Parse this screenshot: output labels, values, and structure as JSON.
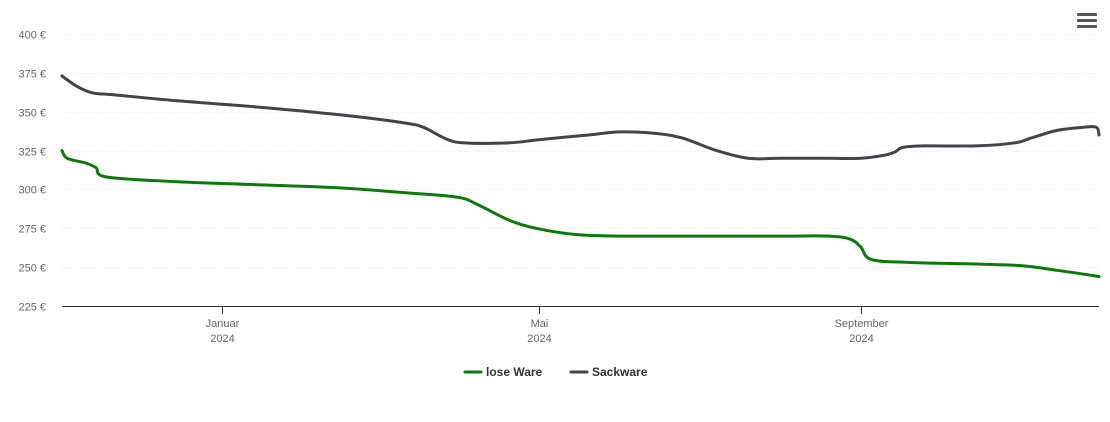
{
  "menu": {
    "icon": "hamburger-menu-icon"
  },
  "chart_data": {
    "type": "line",
    "y_tick_labels": [
      "225 €",
      "250 €",
      "275 €",
      "300 €",
      "325 €",
      "350 €",
      "375 €",
      "400 €"
    ],
    "y_ticks": [
      225,
      250,
      275,
      300,
      325,
      350,
      375,
      400
    ],
    "ylim": [
      225,
      400
    ],
    "x_range": [
      "2023-11-01",
      "2024-12-01"
    ],
    "x_ticks": [
      {
        "date": "2024-01-01",
        "month": "Januar",
        "year": "2024"
      },
      {
        "date": "2024-05-01",
        "month": "Mai",
        "year": "2024"
      },
      {
        "date": "2024-09-01",
        "month": "September",
        "year": "2024"
      }
    ],
    "grid": "horizontal",
    "legend_position": "bottom-center",
    "series": [
      {
        "name": "lose Ware",
        "color": "#0b7a0b",
        "points": [
          [
            "2023-11-01",
            325
          ],
          [
            "2023-11-03",
            320
          ],
          [
            "2023-11-10",
            317
          ],
          [
            "2023-11-14",
            314
          ],
          [
            "2023-11-18",
            308
          ],
          [
            "2023-12-15",
            305
          ],
          [
            "2024-01-15",
            303
          ],
          [
            "2024-02-15",
            301
          ],
          [
            "2024-03-10",
            298
          ],
          [
            "2024-03-31",
            295
          ],
          [
            "2024-04-08",
            290
          ],
          [
            "2024-04-20",
            280
          ],
          [
            "2024-04-30",
            275
          ],
          [
            "2024-05-15",
            271
          ],
          [
            "2024-06-01",
            270
          ],
          [
            "2024-07-01",
            270
          ],
          [
            "2024-08-01",
            270
          ],
          [
            "2024-08-20",
            270
          ],
          [
            "2024-08-28",
            268
          ],
          [
            "2024-09-01",
            263
          ],
          [
            "2024-09-05",
            255
          ],
          [
            "2024-09-20",
            253
          ],
          [
            "2024-10-15",
            252
          ],
          [
            "2024-11-01",
            251
          ],
          [
            "2024-11-15",
            248
          ],
          [
            "2024-12-01",
            244
          ]
        ]
      },
      {
        "name": "Sackware",
        "color": "#434348",
        "points": [
          [
            "2023-11-01",
            373
          ],
          [
            "2023-11-07",
            366
          ],
          [
            "2023-11-13",
            362
          ],
          [
            "2023-11-20",
            361
          ],
          [
            "2023-12-15",
            357
          ],
          [
            "2024-01-15",
            353
          ],
          [
            "2024-02-15",
            348
          ],
          [
            "2024-03-10",
            343
          ],
          [
            "2024-03-18",
            340
          ],
          [
            "2024-03-26",
            333
          ],
          [
            "2024-04-02",
            330
          ],
          [
            "2024-04-20",
            330
          ],
          [
            "2024-05-01",
            332
          ],
          [
            "2024-05-20",
            335
          ],
          [
            "2024-06-01",
            337
          ],
          [
            "2024-06-15",
            336
          ],
          [
            "2024-06-25",
            333
          ],
          [
            "2024-07-08",
            325
          ],
          [
            "2024-07-20",
            320
          ],
          [
            "2024-08-01",
            320
          ],
          [
            "2024-08-20",
            320
          ],
          [
            "2024-09-01",
            320
          ],
          [
            "2024-09-10",
            322
          ],
          [
            "2024-09-14",
            324
          ],
          [
            "2024-09-17",
            327
          ],
          [
            "2024-09-25",
            328
          ],
          [
            "2024-10-15",
            328
          ],
          [
            "2024-10-30",
            330
          ],
          [
            "2024-11-05",
            333
          ],
          [
            "2024-11-15",
            338
          ],
          [
            "2024-11-25",
            340
          ],
          [
            "2024-11-30",
            340
          ],
          [
            "2024-12-01",
            335
          ]
        ]
      }
    ]
  }
}
